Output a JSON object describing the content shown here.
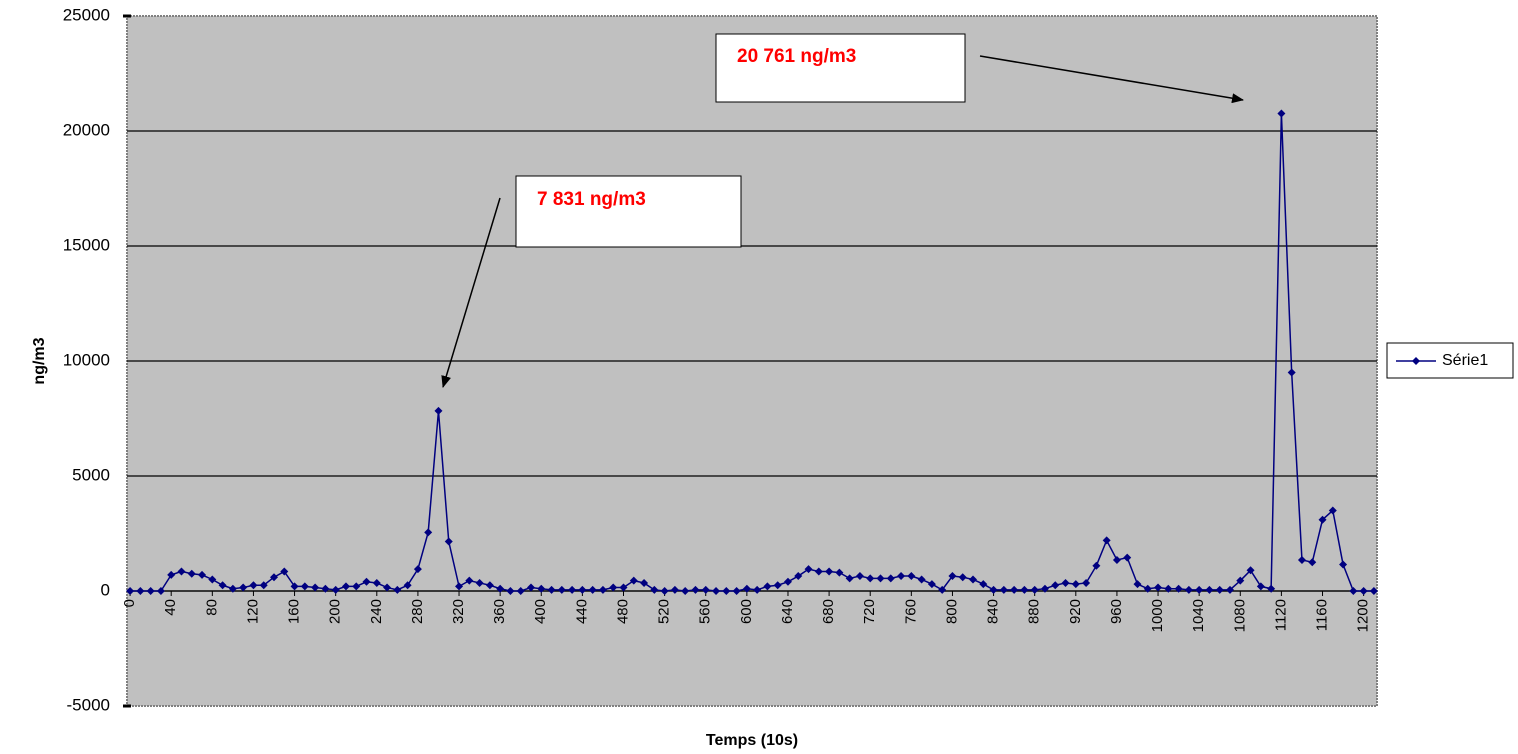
{
  "chart_data": {
    "type": "line",
    "xlabel": "Temps (10s)",
    "ylabel": "ng/m3",
    "x": [
      0,
      10,
      20,
      30,
      40,
      50,
      60,
      70,
      80,
      90,
      100,
      110,
      120,
      130,
      140,
      150,
      160,
      170,
      180,
      190,
      200,
      210,
      220,
      230,
      240,
      250,
      260,
      270,
      280,
      290,
      300,
      310,
      320,
      330,
      340,
      350,
      360,
      370,
      380,
      390,
      400,
      410,
      420,
      430,
      440,
      450,
      460,
      470,
      480,
      490,
      500,
      510,
      520,
      530,
      540,
      550,
      560,
      570,
      580,
      590,
      600,
      610,
      620,
      630,
      640,
      650,
      660,
      670,
      680,
      690,
      700,
      710,
      720,
      730,
      740,
      750,
      760,
      770,
      780,
      790,
      800,
      810,
      820,
      830,
      840,
      850,
      860,
      870,
      880,
      890,
      900,
      910,
      920,
      930,
      940,
      950,
      960,
      970,
      980,
      990,
      1000,
      1010,
      1020,
      1030,
      1040,
      1050,
      1060,
      1070,
      1080,
      1090,
      1100,
      1110,
      1120,
      1130,
      1140,
      1150,
      1160,
      1170,
      1180,
      1190,
      1200,
      1210
    ],
    "series": [
      {
        "name": "Série1",
        "color": "#000080",
        "values": [
          0,
          0,
          0,
          0,
          700,
          850,
          750,
          700,
          500,
          250,
          100,
          150,
          250,
          250,
          600,
          850,
          200,
          200,
          150,
          100,
          50,
          200,
          200,
          400,
          350,
          150,
          50,
          250,
          950,
          2550,
          7831,
          2150,
          200,
          450,
          350,
          250,
          100,
          0,
          0,
          150,
          100,
          50,
          50,
          50,
          50,
          50,
          50,
          150,
          150,
          450,
          350,
          50,
          0,
          50,
          0,
          50,
          50,
          0,
          0,
          0,
          100,
          50,
          200,
          250,
          400,
          650,
          950,
          850,
          850,
          800,
          550,
          650,
          550,
          550,
          550,
          650,
          650,
          500,
          300,
          50,
          650,
          600,
          500,
          300,
          50,
          50,
          50,
          50,
          50,
          100,
          250,
          350,
          300,
          350,
          1100,
          2200,
          1350,
          1450,
          300,
          100,
          150,
          100,
          100,
          50,
          50,
          50,
          50,
          50,
          450,
          900,
          200,
          100,
          20761,
          9500,
          1350,
          1250,
          3100,
          3500,
          1150,
          0,
          0,
          0
        ]
      }
    ],
    "xlim": [
      -3,
      1213
    ],
    "xticks": [
      0,
      40,
      80,
      120,
      160,
      200,
      240,
      280,
      320,
      360,
      400,
      440,
      480,
      520,
      560,
      600,
      640,
      680,
      720,
      760,
      800,
      840,
      880,
      920,
      960,
      1000,
      1040,
      1080,
      1120,
      1160,
      1200
    ],
    "ylim": [
      -5000,
      25000
    ],
    "yticks": [
      -5000,
      0,
      5000,
      10000,
      15000,
      20000,
      25000
    ],
    "grid": true,
    "legend": "right",
    "annotations": [
      {
        "text": "20 761 ng/m3",
        "color": "#ff0000"
      },
      {
        "text": "7 831 ng/m3",
        "color": "#ff0000"
      }
    ]
  }
}
